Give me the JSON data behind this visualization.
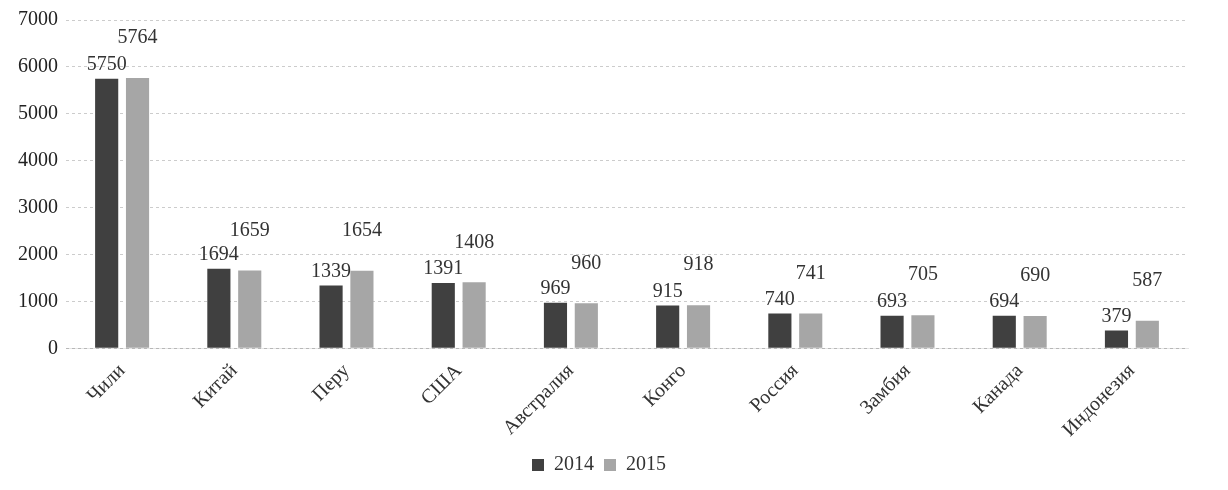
{
  "chart_data": {
    "type": "bar",
    "categories": [
      "Чили",
      "Китай",
      "Перу",
      "США",
      "Австралия",
      "Конго",
      "Россия",
      "Замбия",
      "Канада",
      "Индонезия"
    ],
    "series": [
      {
        "name": "2014",
        "color": "#404040",
        "values": [
          5750,
          1694,
          1339,
          1391,
          969,
          915,
          740,
          693,
          694,
          379
        ]
      },
      {
        "name": "2015",
        "color": "#a6a6a6",
        "values": [
          5764,
          1659,
          1654,
          1408,
          960,
          918,
          741,
          705,
          690,
          587
        ]
      }
    ],
    "ylim": [
      0,
      7000
    ],
    "yticks": [
      0,
      1000,
      2000,
      3000,
      4000,
      5000,
      6000,
      7000
    ],
    "grid": "y",
    "legend": "bottom",
    "data_labels": true
  }
}
